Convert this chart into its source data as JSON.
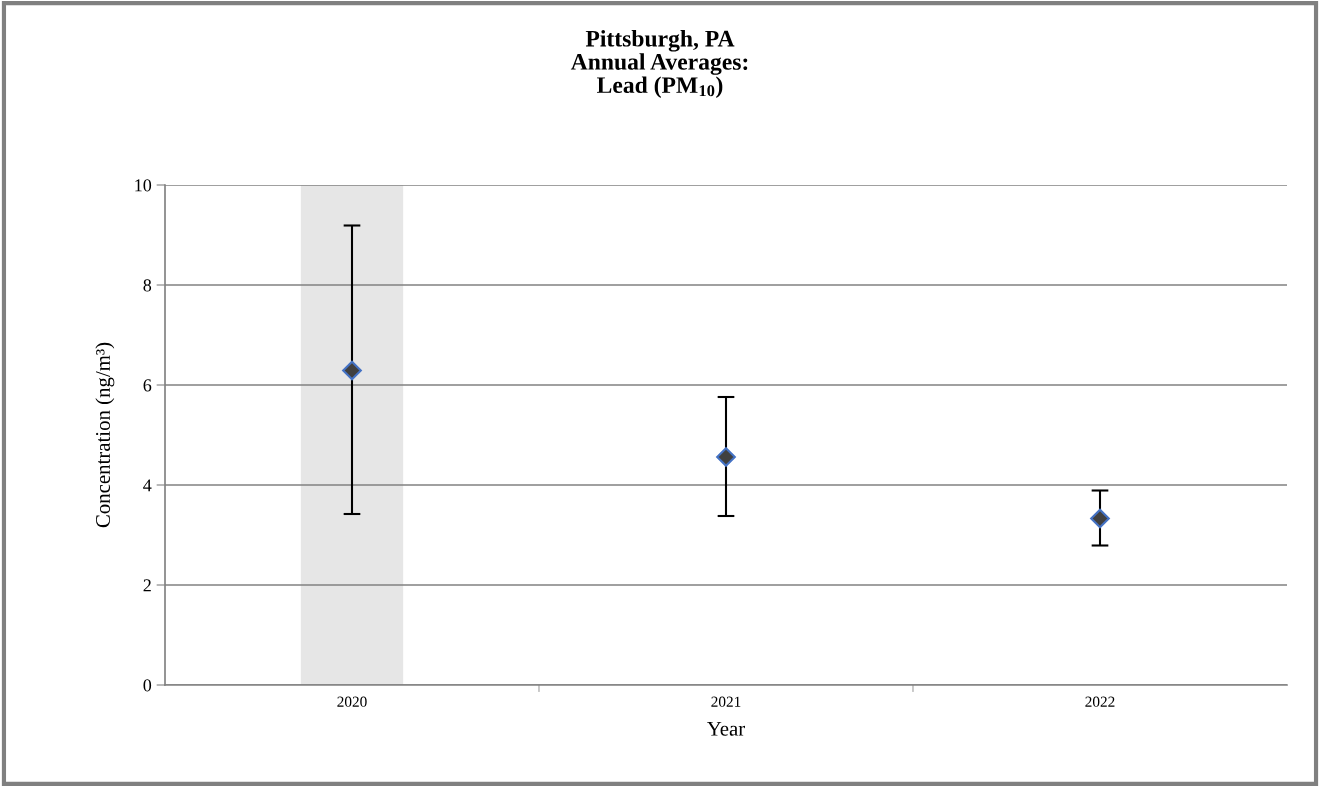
{
  "chart_data": {
    "type": "scatter",
    "title": "Pittsburgh, PA\nAnnual Averages:\nLead (PM$_{10}$)",
    "xlabel": "Year",
    "ylabel": "Concentration (ng/m³)",
    "categories": [
      "2020",
      "2021",
      "2022"
    ],
    "series": [
      {
        "color": "#404040",
        "values": [
          6.29,
          4.56,
          3.33
        ],
        "errors": [
          [
            3.42,
            9.19
          ],
          [
            3.38,
            5.76
          ],
          [
            2.79,
            3.89
          ]
        ]
      }
    ],
    "bands": [
      {
        "axis": "x",
        "from": "2020",
        "to": "2020",
        "color": "#e6e6e6"
      }
    ],
    "ylim": [
      0,
      10
    ],
    "yticks": [
      0,
      2,
      4,
      6,
      8,
      10
    ],
    "grid": "y",
    "marker": "diamond",
    "legend": false
  }
}
